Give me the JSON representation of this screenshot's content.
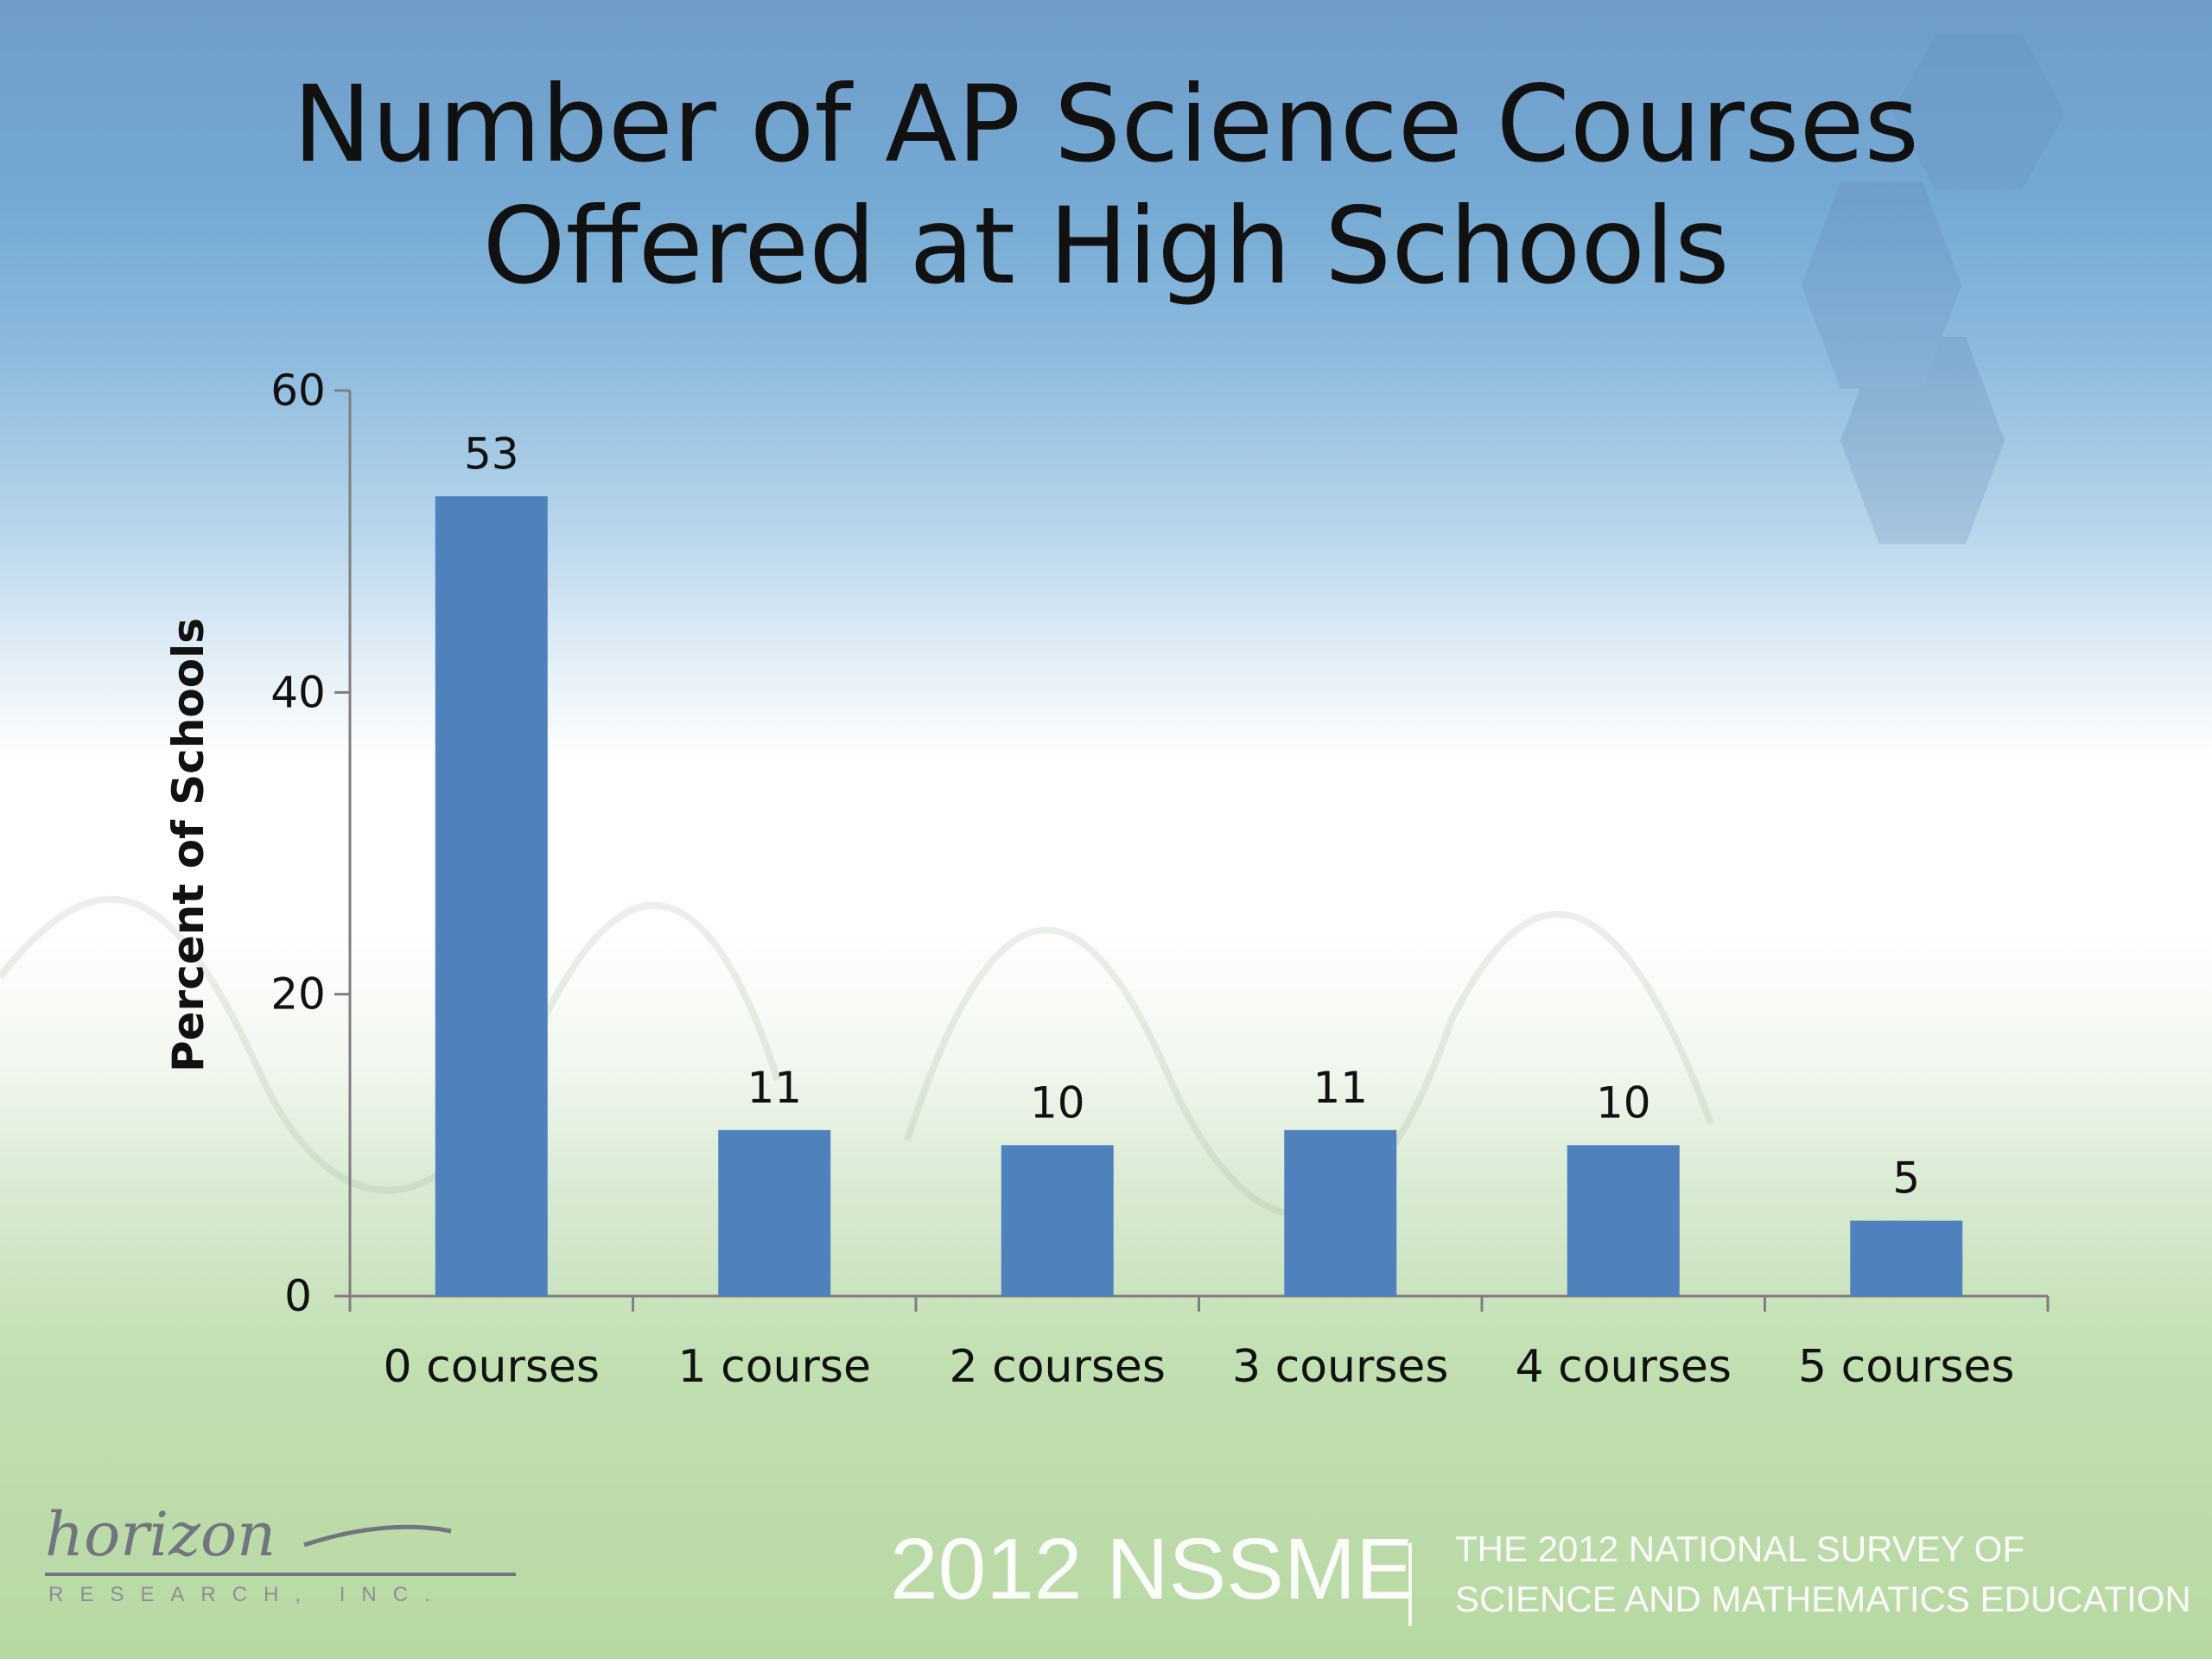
{
  "chart_data": {
    "type": "bar",
    "title": "Number of AP Science Courses Offered at High Schools",
    "title_lines": [
      "Number of AP Science Courses",
      "Offered at High Schools"
    ],
    "xlabel": "",
    "ylabel": "Percent of Schools",
    "categories": [
      "0 courses",
      "1 course",
      "2 courses",
      "3 courses",
      "4 courses",
      "5 courses"
    ],
    "values": [
      53,
      11,
      10,
      11,
      10,
      5
    ],
    "ylim": [
      0,
      60
    ],
    "yticks": [
      0,
      20,
      40,
      60
    ],
    "data_labels": [
      "53",
      "11",
      "10",
      "11",
      "10",
      "5"
    ],
    "grid": false,
    "legend": "none",
    "bar_color": "#4f81bd"
  },
  "footer": {
    "logo_script": "horizon",
    "logo_sub": "RESEARCH, INC.",
    "brand": "2012 NSSME",
    "tag_line_1": "THE 2012 NATIONAL SURVEY OF",
    "tag_line_2": "SCIENCE AND MATHEMATICS EDUCATION"
  }
}
